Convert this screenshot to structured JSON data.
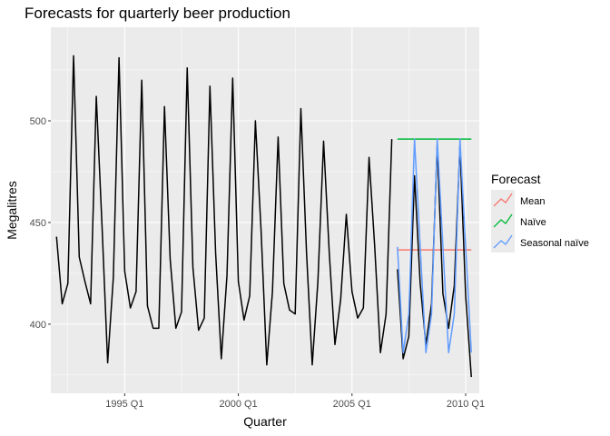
{
  "chart_data": {
    "type": "line",
    "title": "Forecasts for quarterly beer production",
    "xlabel": "Quarter",
    "ylabel": "Megalitres",
    "xlim": [
      1991.75,
      2010.6
    ],
    "ylim": [
      366,
      546
    ],
    "x_ticks": [
      {
        "value": 1995.0,
        "label": "1995 Q1"
      },
      {
        "value": 2000.0,
        "label": "2000 Q1"
      },
      {
        "value": 2005.0,
        "label": "2005 Q1"
      },
      {
        "value": 2010.0,
        "label": "2010 Q1"
      }
    ],
    "y_ticks": [
      {
        "value": 400,
        "label": "400"
      },
      {
        "value": 450,
        "label": "450"
      },
      {
        "value": 500,
        "label": "500"
      }
    ],
    "grid": true,
    "legend": {
      "title": "Forecast",
      "position": "right",
      "entries": [
        {
          "name": "Mean",
          "color": "#f8766d"
        },
        {
          "name": "Naïve",
          "color": "#00ba38"
        },
        {
          "name": "Seasonal naïve",
          "color": "#619cff"
        }
      ]
    },
    "series": [
      {
        "role": "history",
        "color": "#000000",
        "x_start": 1992.0,
        "step": 0.25,
        "values": [
          443,
          410,
          420,
          532,
          433,
          421,
          410,
          512,
          449,
          381,
          423,
          531,
          426,
          408,
          416,
          520,
          409,
          398,
          398,
          507,
          432,
          398,
          406,
          526,
          428,
          397,
          403,
          517,
          435,
          383,
          424,
          521,
          421,
          402,
          414,
          500,
          446,
          380,
          416,
          492,
          420,
          407,
          405,
          506,
          435,
          380,
          421,
          490,
          435,
          390,
          412,
          454,
          416,
          403,
          408,
          482,
          438,
          386,
          405,
          491
        ]
      },
      {
        "role": "test",
        "color": "#000000",
        "x_start": 2007.0,
        "step": 0.25,
        "values": [
          427,
          383,
          394,
          473,
          420,
          390,
          410,
          488,
          415,
          398,
          419,
          488,
          414,
          374
        ]
      },
      {
        "name": "Mean",
        "color": "#f8766d",
        "x_start": 2007.0,
        "step": 0.25,
        "values": [
          436.5,
          436.5,
          436.5,
          436.5,
          436.5,
          436.5,
          436.5,
          436.5,
          436.5,
          436.5,
          436.5,
          436.5,
          436.5,
          436.5
        ]
      },
      {
        "name": "Naïve",
        "color": "#00ba38",
        "x_start": 2007.0,
        "step": 0.25,
        "values": [
          491,
          491,
          491,
          491,
          491,
          491,
          491,
          491,
          491,
          491,
          491,
          491,
          491,
          491
        ]
      },
      {
        "name": "Seasonal naïve",
        "color": "#619cff",
        "x_start": 2007.0,
        "step": 0.25,
        "values": [
          438,
          386,
          405,
          491,
          438,
          386,
          405,
          491,
          438,
          386,
          405,
          491,
          438,
          386
        ]
      }
    ]
  }
}
